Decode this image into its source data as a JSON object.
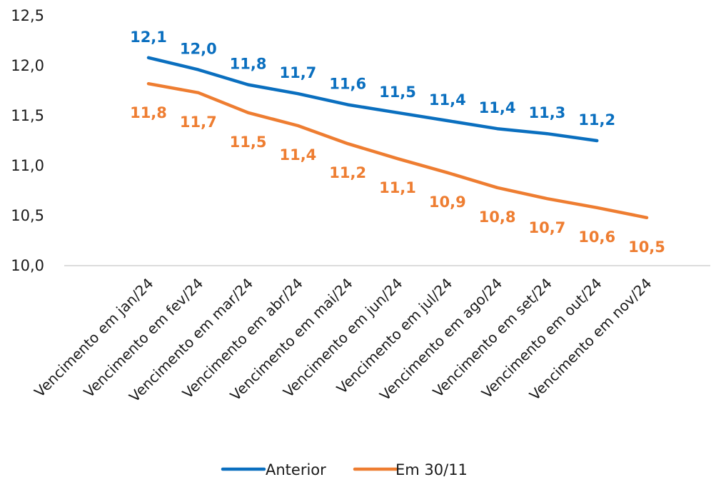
{
  "chart_data": {
    "type": "line",
    "title": "",
    "xlabel": "",
    "ylabel": "",
    "ylim": [
      10.0,
      12.5
    ],
    "yticks": [
      "10,0",
      "10,5",
      "11,0",
      "11,5",
      "12,0",
      "12,5"
    ],
    "ytick_values": [
      10.0,
      10.5,
      11.0,
      11.5,
      12.0,
      12.5
    ],
    "categories": [
      "Vencimento em jan/24",
      "Vencimento em fev/24",
      "Vencimento em mar/24",
      "Vencimento em abr/24",
      "Vencimento em mai/24",
      "Vencimento em jun/24",
      "Vencimento em jul/24",
      "Vencimento em ago/24",
      "Vencimento em set/24",
      "Vencimento em out/24",
      "Vencimento em nov/24"
    ],
    "series": [
      {
        "name": "Anterior",
        "color": "#0a6fbf",
        "values": [
          12.08,
          11.96,
          11.81,
          11.72,
          11.61,
          11.53,
          11.45,
          11.37,
          11.32,
          11.25,
          null
        ],
        "labels": [
          "12,1",
          "12,0",
          "11,8",
          "11,7",
          "11,6",
          "11,5",
          "11,4",
          "11,4",
          "11,3",
          "11,2",
          null
        ]
      },
      {
        "name": "Em 30/11",
        "color": "#ee7d31",
        "values": [
          11.82,
          11.73,
          11.53,
          11.4,
          11.22,
          11.07,
          10.93,
          10.78,
          10.67,
          10.58,
          10.48
        ],
        "labels": [
          "11,8",
          "11,7",
          "11,5",
          "11,4",
          "11,2",
          "11,1",
          "10,9",
          "10,8",
          "10,7",
          "10,6",
          "10,5"
        ]
      }
    ],
    "legend": {
      "position": "bottom",
      "items": [
        "Anterior",
        "Em 30/11"
      ]
    },
    "grid": false
  }
}
